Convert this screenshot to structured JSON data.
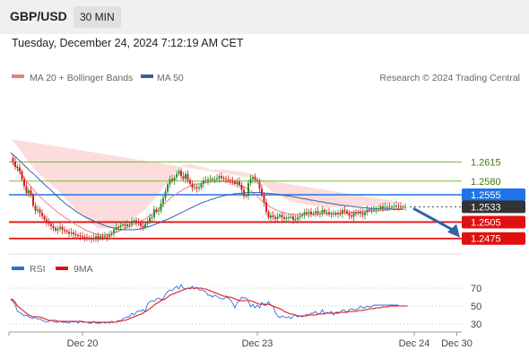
{
  "header": {
    "pair": "GBP/USD",
    "timeframe": "30 MIN"
  },
  "timestamp": "Tuesday, December 24, 2024 7:12:19 AM CET",
  "legend": {
    "ma20": "MA 20 + Bollinger Bands",
    "ma50": "MA 50",
    "credit": "Research © 2024 Trading Central",
    "rsi": "RSI",
    "ma9": "9MA"
  },
  "colors": {
    "ma20": "#f27a7a",
    "bollinger": "#fbd3d3",
    "ma50": "#3a5fa0",
    "bull": "#2e8b2e",
    "bear": "#d32020",
    "resistance": "#7dbb3c",
    "support": "#e01010",
    "pivot": "#1f73e8",
    "last": "#333333",
    "rsi": "#2f6fdd",
    "rsi_ma": "#e01010",
    "arrow": "#2f64a8"
  },
  "chart_data": [
    {
      "type": "candlestick",
      "title": "GBP/USD",
      "timeframe": "30 MIN",
      "y_range": [
        1.2445,
        1.2665
      ],
      "x_labels": [
        "Dec 20",
        "Dec 23",
        "Dec 24",
        "Dec 30"
      ],
      "x_label_index": [
        32,
        110,
        180,
        199
      ],
      "n_bars": 200,
      "last_index": 178,
      "close": [
        1.2622,
        1.2616,
        1.2606,
        1.2605,
        1.2598,
        1.2583,
        1.2571,
        1.2558,
        1.2563,
        1.2555,
        1.2535,
        1.2526,
        1.2528,
        1.2522,
        1.2516,
        1.251,
        1.2504,
        1.2502,
        1.2498,
        1.2494,
        1.249,
        1.2493,
        1.2496,
        1.2491,
        1.2489,
        1.2487,
        1.2484,
        1.2486,
        1.2483,
        1.2481,
        1.248,
        1.2479,
        1.2478,
        1.2477,
        1.2476,
        1.2475,
        1.2474,
        1.2476,
        1.2479,
        1.2475,
        1.2479,
        1.2478,
        1.2479,
        1.2478,
        1.2482,
        1.2485,
        1.2491,
        1.2496,
        1.2495,
        1.2499,
        1.2501,
        1.2498,
        1.2501,
        1.2501,
        1.2507,
        1.2508,
        1.2504,
        1.2503,
        1.2498,
        1.2495,
        1.2502,
        1.2506,
        1.2513,
        1.2514,
        1.2528,
        1.2524,
        1.2526,
        1.2539,
        1.2549,
        1.2561,
        1.2574,
        1.2584,
        1.2581,
        1.2587,
        1.2593,
        1.2599,
        1.2589,
        1.2584,
        1.2593,
        1.2582,
        1.2575,
        1.2568,
        1.2569,
        1.2567,
        1.2568,
        1.2575,
        1.2581,
        1.2581,
        1.2583,
        1.2584,
        1.2583,
        1.2583,
        1.2585,
        1.2589,
        1.2586,
        1.2584,
        1.2583,
        1.2582,
        1.2581,
        1.2579,
        1.2575,
        1.2579,
        1.2573,
        1.2564,
        1.2553,
        1.2553,
        1.2576,
        1.2584,
        1.2587,
        1.2582,
        1.2579,
        1.2566,
        1.2555,
        1.2541,
        1.2524,
        1.2513,
        1.2517,
        1.2514,
        1.2511,
        1.2515,
        1.2518,
        1.2514,
        1.2511,
        1.2513,
        1.2514,
        1.2515,
        1.2509,
        1.251,
        1.2514,
        1.2516,
        1.2518,
        1.2523,
        1.2521,
        1.2524,
        1.252,
        1.2521,
        1.2525,
        1.2521,
        1.2521,
        1.2527,
        1.2523,
        1.2523,
        1.252,
        1.252,
        1.2521,
        1.2519,
        1.2521,
        1.252,
        1.2527,
        1.2525,
        1.2521,
        1.2517,
        1.2515,
        1.2522,
        1.2521,
        1.2524,
        1.2521,
        1.2518,
        1.2523,
        1.2528,
        1.2527,
        1.2528,
        1.2528,
        1.2529,
        1.253,
        1.2534,
        1.2531,
        1.2533,
        1.2533,
        1.2532,
        1.2533,
        1.2534,
        1.2535,
        1.2534,
        1.2533,
        1.2533,
        1.2533
      ],
      "ma20": [
        1.2617,
        1.2613,
        1.2608,
        1.2603,
        1.2598,
        1.2592,
        1.2586,
        1.258,
        1.2575,
        1.257,
        1.2565,
        1.256,
        1.2556,
        1.2552,
        1.2548,
        1.2544,
        1.254,
        1.2537,
        1.2533,
        1.253,
        1.2526,
        1.2523,
        1.252,
        1.2517,
        1.2514,
        1.2511,
        1.2509,
        1.2506,
        1.2503,
        1.25,
        1.2498,
        1.2496,
        1.2494,
        1.2491,
        1.2489,
        1.2488,
        1.2486,
        1.2485,
        1.2483,
        1.2482,
        1.2482,
        1.2481,
        1.2481,
        1.2482,
        1.2482,
        1.2483,
        1.2485,
        1.2486,
        1.2488,
        1.249,
        1.2492,
        1.2494,
        1.2496,
        1.2497,
        1.2499,
        1.2501,
        1.2503,
        1.2505,
        1.2507,
        1.2509,
        1.2511,
        1.2514,
        1.2516,
        1.2519,
        1.2522,
        1.2526,
        1.2529,
        1.2533,
        1.2537,
        1.254,
        1.2544,
        1.2548,
        1.2551,
        1.2554,
        1.2557,
        1.256,
        1.2562,
        1.2565,
        1.2567,
        1.2569,
        1.2571,
        1.2572,
        1.2573,
        1.2575,
        1.2575,
        1.2576,
        1.2577,
        1.2577,
        1.2578,
        1.2578,
        1.2579,
        1.2579,
        1.2579,
        1.2579,
        1.2579,
        1.2579,
        1.2579,
        1.2578,
        1.2578,
        1.2577,
        1.2576,
        1.2575,
        1.2573,
        1.2571,
        1.2569,
        1.2567,
        1.2565,
        1.2562,
        1.2559,
        1.2556,
        1.2552,
        1.2548,
        1.2544,
        1.2541,
        1.2538,
        1.2535,
        1.2532,
        1.253,
        1.2528,
        1.2526,
        1.2525,
        1.2523,
        1.2522,
        1.2521,
        1.252,
        1.252,
        1.2519,
        1.2519,
        1.2519,
        1.2519,
        1.2519,
        1.2519,
        1.2519,
        1.2519,
        1.2519,
        1.2519,
        1.2519,
        1.2519,
        1.252,
        1.252,
        1.252,
        1.252,
        1.252,
        1.2521,
        1.2521,
        1.2521,
        1.2521,
        1.2522,
        1.2522,
        1.2522,
        1.2522,
        1.2522,
        1.2523,
        1.2523,
        1.2523,
        1.2523,
        1.2523,
        1.2524,
        1.2524,
        1.2524,
        1.2525,
        1.2525,
        1.2525,
        1.2526,
        1.2526,
        1.2526,
        1.2527,
        1.2527,
        1.2527,
        1.2528,
        1.2528,
        1.2528,
        1.2529,
        1.2529,
        1.2529,
        1.253
      ],
      "ma50": [
        1.2632,
        1.2628,
        1.2625,
        1.2621,
        1.2617,
        1.2613,
        1.2609,
        1.2605,
        1.2601,
        1.2597,
        1.2594,
        1.259,
        1.2586,
        1.2582,
        1.2578,
        1.2574,
        1.257,
        1.2567,
        1.2563,
        1.2559,
        1.2555,
        1.2551,
        1.2547,
        1.2544,
        1.254,
        1.2537,
        1.2534,
        1.2531,
        1.2528,
        1.2525,
        1.2522,
        1.252,
        1.2517,
        1.2515,
        1.2513,
        1.2511,
        1.2509,
        1.2507,
        1.2505,
        1.2503,
        1.2502,
        1.25,
        1.2499,
        1.2497,
        1.2496,
        1.2495,
        1.2494,
        1.2493,
        1.2492,
        1.2492,
        1.2491,
        1.2491,
        1.2491,
        1.2491,
        1.2491,
        1.2491,
        1.2492,
        1.2492,
        1.2493,
        1.2494,
        1.2495,
        1.2496,
        1.2497,
        1.2499,
        1.25,
        1.2502,
        1.2503,
        1.2505,
        1.2507,
        1.2509,
        1.251,
        1.2512,
        1.2514,
        1.2516,
        1.2518,
        1.252,
        1.2522,
        1.2524,
        1.2526,
        1.2528,
        1.253,
        1.2532,
        1.2534,
        1.2536,
        1.2538,
        1.254,
        1.2541,
        1.2543,
        1.2544,
        1.2546,
        1.2547,
        1.2548,
        1.255,
        1.2551,
        1.2552,
        1.2553,
        1.2554,
        1.2555,
        1.2555,
        1.2556,
        1.2557,
        1.2557,
        1.2558,
        1.2558,
        1.2558,
        1.2559,
        1.2559,
        1.2559,
        1.2559,
        1.2559,
        1.2559,
        1.2559,
        1.2559,
        1.2558,
        1.2558,
        1.2558,
        1.2557,
        1.2557,
        1.2556,
        1.2556,
        1.2555,
        1.2555,
        1.2554,
        1.2553,
        1.2553,
        1.2552,
        1.2551,
        1.2551,
        1.255,
        1.2549,
        1.2548,
        1.2548,
        1.2547,
        1.2546,
        1.2545,
        1.2545,
        1.2544,
        1.2543,
        1.2542,
        1.2542,
        1.2541,
        1.254,
        1.254,
        1.2539,
        1.2538,
        1.2538,
        1.2537,
        1.2536,
        1.2536,
        1.2535,
        1.2535,
        1.2534,
        1.2534,
        1.2533,
        1.2533,
        1.2532,
        1.2532,
        1.2531,
        1.2531,
        1.2531,
        1.253,
        1.253,
        1.253,
        1.253,
        1.2529,
        1.2529,
        1.2529,
        1.2529,
        1.2529,
        1.2529,
        1.2529,
        1.2528,
        1.2528,
        1.2528,
        1.2528,
        1.2528
      ],
      "bb_half_width": [
        0.004,
        0.004,
        0.004,
        0.004,
        0.004,
        0.004,
        0.004,
        0.004,
        0.004,
        0.004,
        0.004,
        0.004,
        0.004,
        0.004,
        0.004,
        0.004,
        0.004,
        0.004,
        0.004,
        0.004,
        0.004,
        0.004,
        0.0039,
        0.0037,
        0.0036,
        0.0034,
        0.0033,
        0.0031,
        0.0029,
        0.0028,
        0.0026,
        0.0025,
        0.0023,
        0.0022,
        0.002,
        0.0018,
        0.0017,
        0.0015,
        0.0014,
        0.0012,
        0.0012,
        0.0012,
        0.0012,
        0.0012,
        0.0012,
        0.0012,
        0.0012,
        0.0012,
        0.0012,
        0.0012,
        0.0012,
        0.0012,
        0.0012,
        0.0012,
        0.0012,
        0.0012,
        0.0012,
        0.0013,
        0.0014,
        0.0016,
        0.0017,
        0.0019,
        0.0021,
        0.0023,
        0.0024,
        0.0026,
        0.0028,
        0.003,
        0.0032,
        0.0034,
        0.0035,
        0.0037,
        0.0039,
        0.0041,
        0.0042,
        0.0044,
        0.0045,
        0.0045,
        0.0043,
        0.0042,
        0.004,
        0.0038,
        0.0036,
        0.0034,
        0.0032,
        0.0031,
        0.0029,
        0.0027,
        0.0025,
        0.0023,
        0.0022,
        0.0022,
        0.0022,
        0.0022,
        0.0022,
        0.0022,
        0.0022,
        0.0022,
        0.0022,
        0.0022,
        0.0022,
        0.0023,
        0.0025,
        0.0026,
        0.0027,
        0.0028,
        0.003,
        0.0031,
        0.0032,
        0.0034,
        0.0035,
        0.0034,
        0.0034,
        0.0033,
        0.0032,
        0.0031,
        0.0031,
        0.003,
        0.0029,
        0.0028,
        0.0028,
        0.0027,
        0.0026,
        0.0025,
        0.0024,
        0.0024,
        0.0023,
        0.0022,
        0.0021,
        0.0021,
        0.002,
        0.0019,
        0.0018,
        0.0017,
        0.0017,
        0.0016,
        0.0015,
        0.0014,
        0.0014,
        0.0013,
        0.0012,
        0.0011,
        0.0011,
        0.0011,
        0.0011,
        0.0011,
        0.0011,
        0.0011,
        0.0011,
        0.0011,
        0.0011,
        0.0011,
        0.0011,
        0.0011,
        0.0011,
        0.0011,
        0.0011,
        0.0011,
        0.0011,
        0.0011,
        0.0011,
        0.0011,
        0.0011,
        0.0011,
        0.0011,
        0.0011,
        0.0011,
        0.0011,
        0.0011,
        0.0011,
        0.0011,
        0.0011,
        0.0011,
        0.0011,
        0.0011,
        0.0011,
        0.0011,
        0.0011,
        0.0011,
        0.0011
      ],
      "levels": [
        {
          "value": "1.2615",
          "kind": "resistance"
        },
        {
          "value": "1.2580",
          "kind": "resistance"
        },
        {
          "value": "1.2555",
          "kind": "pivot"
        },
        {
          "value": "1.2533",
          "kind": "last"
        },
        {
          "value": "1.2505",
          "kind": "support"
        },
        {
          "value": "1.2475",
          "kind": "support"
        }
      ],
      "projection_arrow": {
        "from": 1.253,
        "to": 1.248
      }
    },
    {
      "type": "line",
      "title": "RSI",
      "series_names": [
        "RSI",
        "9MA"
      ],
      "y_range": [
        25,
        75
      ],
      "y_ticks": [
        "70",
        "50",
        "30"
      ],
      "rsi": [
        57,
        55,
        51,
        44,
        43,
        41,
        39,
        40,
        38,
        37,
        36,
        38,
        35,
        36,
        34,
        33,
        32,
        33,
        34,
        33,
        32,
        32,
        33,
        32,
        32,
        32,
        31,
        33,
        32,
        33,
        31,
        33,
        32,
        32,
        32,
        31,
        31,
        33,
        31,
        31,
        31,
        32,
        31,
        32,
        31,
        33,
        32,
        32,
        34,
        33,
        36,
        37,
        38,
        38,
        42,
        40,
        43,
        45,
        44,
        46,
        44,
        52,
        55,
        56,
        55,
        58,
        59,
        57,
        58,
        63,
        66,
        68,
        67,
        70,
        72,
        69,
        74,
        70,
        69,
        70,
        69,
        72,
        69,
        71,
        68,
        68,
        67,
        66,
        62,
        62,
        60,
        62,
        61,
        59,
        58,
        58,
        60,
        59,
        57,
        53,
        48,
        54,
        56,
        60,
        59,
        59,
        56,
        49,
        52,
        48,
        51,
        48,
        54,
        51,
        51,
        55,
        51,
        50,
        43,
        39,
        37,
        39,
        38,
        37,
        38,
        36,
        39,
        40,
        38,
        39,
        38,
        39,
        41,
        40,
        42,
        42,
        44,
        41,
        42,
        46,
        41,
        43,
        42,
        44,
        40,
        43,
        43,
        43,
        46,
        45,
        43,
        46,
        47,
        46,
        46,
        47,
        50,
        48,
        48,
        50,
        49,
        49,
        51,
        51,
        51,
        51,
        51,
        51,
        51,
        51,
        51,
        51,
        51,
        51
      ],
      "rsi_ma9": [
        58,
        57,
        54,
        50,
        48,
        46,
        44,
        42,
        40,
        39,
        38,
        38,
        38,
        38,
        37,
        36,
        35,
        34,
        34,
        34,
        34,
        33,
        33,
        33,
        33,
        33,
        33,
        33,
        33,
        33,
        33,
        33,
        33,
        32,
        32,
        32,
        32,
        32,
        32,
        32,
        32,
        32,
        32,
        32,
        32,
        32,
        32,
        32,
        33,
        33,
        34,
        34,
        35,
        36,
        37,
        38,
        39,
        40,
        41,
        42,
        44,
        45,
        47,
        49,
        51,
        53,
        54,
        56,
        57,
        58,
        60,
        62,
        63,
        64,
        65,
        66,
        67,
        68,
        69,
        70,
        70,
        70,
        70,
        70,
        70,
        70,
        69,
        69,
        68,
        67,
        66,
        65,
        64,
        63,
        62,
        61,
        61,
        60,
        60,
        59,
        58,
        57,
        56,
        56,
        56,
        56,
        56,
        56,
        55,
        54,
        53,
        52,
        52,
        52,
        52,
        52,
        51,
        50,
        49,
        48,
        47,
        46,
        44,
        43,
        42,
        41,
        41,
        40,
        39,
        39,
        39,
        39,
        39,
        40,
        40,
        40,
        40,
        41,
        41,
        41,
        42,
        42,
        42,
        42,
        42,
        42,
        42,
        43,
        43,
        43,
        43,
        44,
        44,
        44,
        44,
        45,
        45,
        45,
        46,
        46,
        47,
        47,
        47,
        48,
        48,
        48,
        49,
        49,
        49,
        50,
        50,
        50,
        50,
        50,
        50,
        50,
        50,
        50
      ]
    }
  ]
}
